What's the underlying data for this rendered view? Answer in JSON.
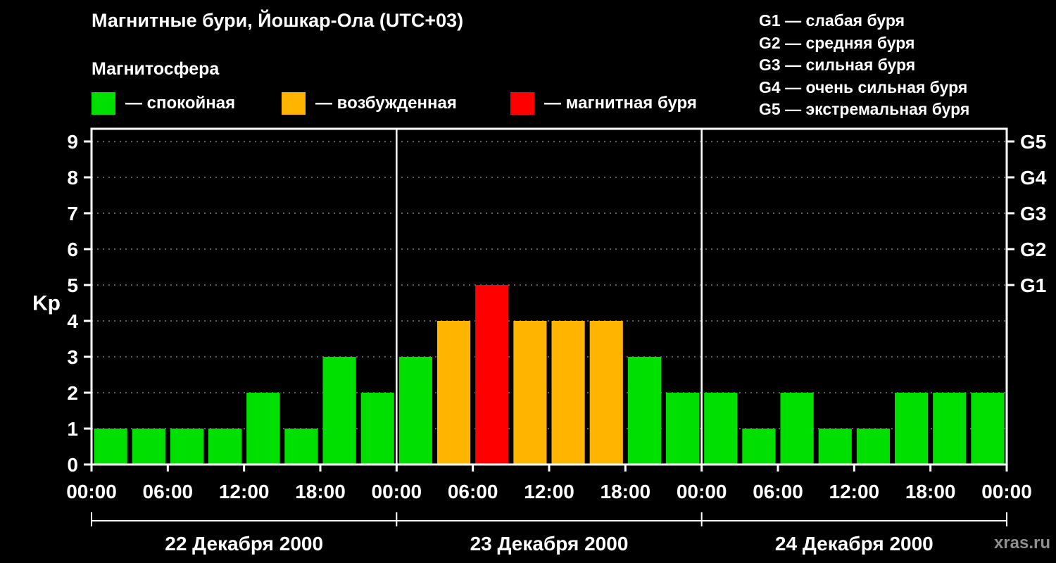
{
  "page": {
    "background": "#000000",
    "foreground": "#ffffff"
  },
  "title": "Магнитные бури, Йошкар-Ола (UTC+03)",
  "legend": {
    "heading": "Магнитосфера",
    "items": [
      {
        "key": "quiet",
        "label": "— спокойная",
        "color": "#00e000"
      },
      {
        "key": "active",
        "label": "— возбужденная",
        "color": "#ffb400"
      },
      {
        "key": "storm",
        "label": "— магнитная буря",
        "color": "#ff0000"
      }
    ]
  },
  "storm_scale": [
    "G1 — слабая буря",
    "G2 — средняя буря",
    "G3 — сильная буря",
    "G4 — очень сильная буря",
    "G5 — экстремальная буря"
  ],
  "watermark": "xras.ru",
  "chart_data": {
    "type": "bar",
    "title": "Kp index per 3-hour interval",
    "ylabel": "Kp",
    "ylim": [
      0,
      9
    ],
    "yticks": [
      0,
      1,
      2,
      3,
      4,
      5,
      6,
      7,
      8,
      9
    ],
    "grid": "dashed horizontal lines at each integer Kp level 1-9",
    "legend_position": "top",
    "right_axis_labels": [
      {
        "label": "G1",
        "value": 5
      },
      {
        "label": "G2",
        "value": 6
      },
      {
        "label": "G3",
        "value": 7
      },
      {
        "label": "G4",
        "value": 8
      },
      {
        "label": "G5",
        "value": 9
      }
    ],
    "hour_labels": [
      "00:00",
      "06:00",
      "12:00",
      "18:00"
    ],
    "end_label": "00:00",
    "colors": {
      "quiet": "#00e000",
      "active": "#ffb400",
      "storm": "#ff0000"
    },
    "color_rule": "Kp <= 3 quiet green; Kp = 4 active orange; Kp >= 5 storm red",
    "days": [
      {
        "date": "22 Декабря 2000",
        "values": [
          1,
          1,
          1,
          1,
          2,
          1,
          3,
          2
        ]
      },
      {
        "date": "23 Декабря 2000",
        "values": [
          3,
          4,
          5,
          4,
          4,
          4,
          3,
          2
        ]
      },
      {
        "date": "24 Декабря 2000",
        "values": [
          2,
          1,
          2,
          1,
          1,
          2,
          2,
          2
        ]
      }
    ]
  }
}
